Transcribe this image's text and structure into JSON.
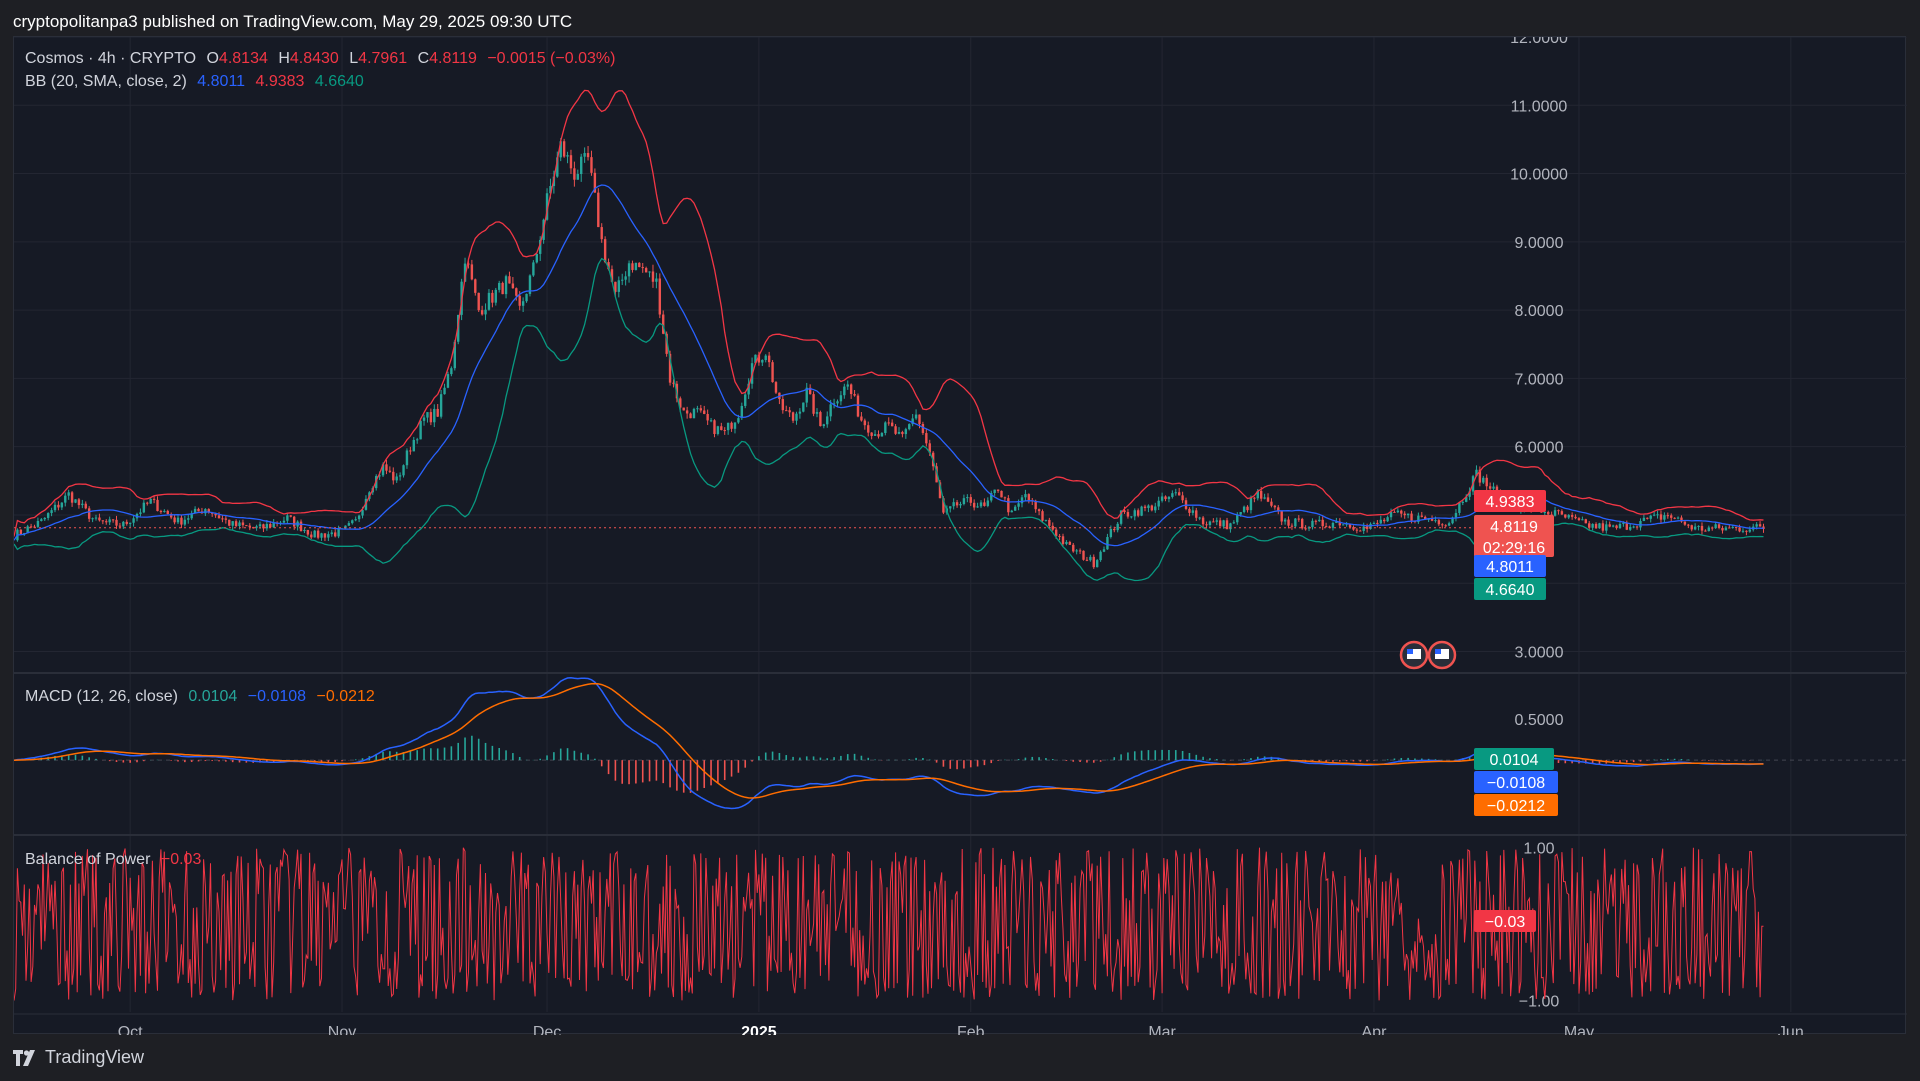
{
  "header": {
    "published": "cryptopolitanpa3 published on TradingView.com, May 29, 2025 09:30 UTC"
  },
  "legend_main": {
    "symbol": "Cosmos · 4h · CRYPTO",
    "o_label": "O",
    "o": "4.8134",
    "h_label": "H",
    "h": "4.8430",
    "l_label": "L",
    "l": "4.7961",
    "c_label": "C",
    "c": "4.8119",
    "change": "−0.0015 (−0.03%)"
  },
  "legend_bb": {
    "label": "BB (20, SMA, close, 2)",
    "basis": "4.8011",
    "upper": "4.9383",
    "lower": "4.6640"
  },
  "legend_macd": {
    "label": "MACD (12, 26, close)",
    "hist": "0.0104",
    "macd": "−0.0108",
    "signal": "−0.0212"
  },
  "legend_bop": {
    "label": "Balance of Power",
    "value": "−0.03"
  },
  "price_labels": {
    "upper": "4.9383",
    "close": "4.8119",
    "countdown": "02:29:16",
    "basis": "4.8011",
    "lower": "4.6640"
  },
  "macd_labels": {
    "hist": "0.0104",
    "macd": "−0.0108",
    "signal": "−0.0212"
  },
  "bop_labels": {
    "value": "−0.03"
  },
  "footer": {
    "brand": "TradingView"
  },
  "colors": {
    "bg": "#161a25",
    "grid": "#232632",
    "up": "#26a69a",
    "down": "#ef5350",
    "bb_upper": "#f23645",
    "bb_basis": "#2962ff",
    "bb_lower": "#089981",
    "macd": "#2962ff",
    "signal": "#ff6d00",
    "bop": "#f23645",
    "axis_text": "#b2b5be"
  },
  "chart_data": [
    {
      "type": "line",
      "subtype": "candlestick_with_bollinger",
      "ylim": [
        2.7,
        12
      ],
      "y_ticks": [
        "12.0000",
        "11.0000",
        "10.0000",
        "9.0000",
        "8.0000",
        "7.0000",
        "6.0000",
        "3.0000"
      ],
      "y_tick_values": [
        12,
        11,
        10,
        9,
        8,
        7,
        6,
        3
      ],
      "x_ticks": [
        "Oct",
        "Nov",
        "Dec",
        "2025",
        "Feb",
        "Mar",
        "Apr",
        "May",
        "Jun"
      ],
      "x_tick_days": [
        13,
        44,
        74,
        105,
        136,
        164,
        195,
        225,
        256
      ],
      "x_range_days": [
        -4,
        273
      ],
      "series": [
        {
          "key": "close",
          "days": [
            -4,
            0,
            4,
            8,
            12,
            16,
            20,
            24,
            28,
            32,
            36,
            40,
            44,
            46,
            48,
            50,
            52,
            54,
            56,
            58,
            60,
            62,
            64,
            66,
            68,
            70,
            72,
            74,
            76,
            78,
            80,
            82,
            84,
            86,
            88,
            90,
            92,
            94,
            96,
            98,
            100,
            102,
            104,
            106,
            108,
            110,
            112,
            114,
            116,
            118,
            120,
            122,
            124,
            126,
            128,
            130,
            132,
            134,
            136,
            138,
            140,
            142,
            144,
            146,
            148,
            150,
            154,
            158,
            162,
            166,
            170,
            174,
            178,
            182,
            186,
            190,
            194,
            198,
            202,
            206,
            210,
            214,
            218,
            222,
            226,
            230,
            234,
            238,
            242,
            246,
            249,
            252
          ],
          "values": [
            4.7,
            4.9,
            5.3,
            4.9,
            4.85,
            5.2,
            4.9,
            5.1,
            4.85,
            4.8,
            4.95,
            4.7,
            4.75,
            4.9,
            5.4,
            5.7,
            5.5,
            6.0,
            6.4,
            6.5,
            7.2,
            8.8,
            8.0,
            8.2,
            8.4,
            8.0,
            8.6,
            9.6,
            10.4,
            10.0,
            10.2,
            9.0,
            8.2,
            8.7,
            8.6,
            8.4,
            7.0,
            6.5,
            6.5,
            6.3,
            6.2,
            6.5,
            7.2,
            7.4,
            6.6,
            6.4,
            6.8,
            6.3,
            6.7,
            6.9,
            6.4,
            6.2,
            6.3,
            6.1,
            6.5,
            5.9,
            5.0,
            5.15,
            5.2,
            5.1,
            5.4,
            5.0,
            5.3,
            5.0,
            4.8,
            4.55,
            4.3,
            5.0,
            5.1,
            5.3,
            4.9,
            4.85,
            5.3,
            4.9,
            4.85,
            4.9,
            4.8,
            5.0,
            4.95,
            4.9,
            5.6,
            5.2,
            5.1,
            5.0,
            4.85,
            4.8,
            4.9,
            5.0,
            4.8,
            4.8,
            4.81,
            4.81
          ]
        }
      ]
    },
    {
      "type": "bar",
      "subtype": "macd",
      "ylim": [
        -0.9,
        1.05
      ],
      "y_ticks": [
        "0.5000"
      ],
      "y_tick_values": [
        0.5
      ]
    },
    {
      "type": "line",
      "subtype": "balance_of_power",
      "ylim": [
        -1.15,
        1.15
      ],
      "y_ticks": [
        "1.00",
        "−1.00"
      ],
      "y_tick_values": [
        1,
        -1
      ],
      "last": -0.03
    }
  ]
}
